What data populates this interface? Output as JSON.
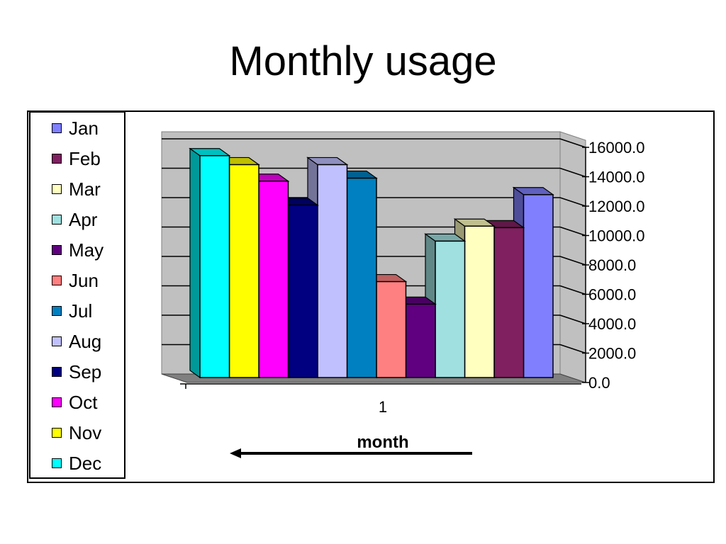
{
  "chart_data": {
    "type": "bar",
    "title": "Monthly usage",
    "xlabel": "month",
    "ylabel": "",
    "categories": [
      "1"
    ],
    "ylim": [
      0,
      16000
    ],
    "yticks": [
      0,
      2000,
      4000,
      6000,
      8000,
      10000,
      12000,
      14000,
      16000
    ],
    "ytick_labels": [
      "0.0",
      "2000.0",
      "4000.0",
      "6000.0",
      "8000.0",
      "10000.0",
      "12000.0",
      "14000.0",
      "16000.0"
    ],
    "legend_position": "left",
    "grid": true,
    "series": [
      {
        "name": "Jan",
        "values": [
          12200
        ],
        "color": "#8080FF"
      },
      {
        "name": "Feb",
        "values": [
          10000
        ],
        "color": "#802060"
      },
      {
        "name": "Mar",
        "values": [
          10100
        ],
        "color": "#FFFFC0"
      },
      {
        "name": "Apr",
        "values": [
          9100
        ],
        "color": "#A0E0E0"
      },
      {
        "name": "May",
        "values": [
          4900
        ],
        "color": "#600080"
      },
      {
        "name": "Jun",
        "values": [
          6400
        ],
        "color": "#FF8080"
      },
      {
        "name": "Jul",
        "values": [
          13300
        ],
        "color": "#0080C0"
      },
      {
        "name": "Aug",
        "values": [
          14200
        ],
        "color": "#C0C0FF"
      },
      {
        "name": "Sep",
        "values": [
          11500
        ],
        "color": "#000080"
      },
      {
        "name": "Oct",
        "values": [
          13100
        ],
        "color": "#FF00FF"
      },
      {
        "name": "Nov",
        "values": [
          14200
        ],
        "color": "#FFFF00"
      },
      {
        "name": "Dec",
        "values": [
          14800
        ],
        "color": "#00FFFF"
      }
    ],
    "draw_order": [
      "Dec",
      "Nov",
      "Oct",
      "Sep",
      "Aug",
      "Jul",
      "Jun",
      "May",
      "Apr",
      "Mar",
      "Feb",
      "Jan"
    ]
  }
}
